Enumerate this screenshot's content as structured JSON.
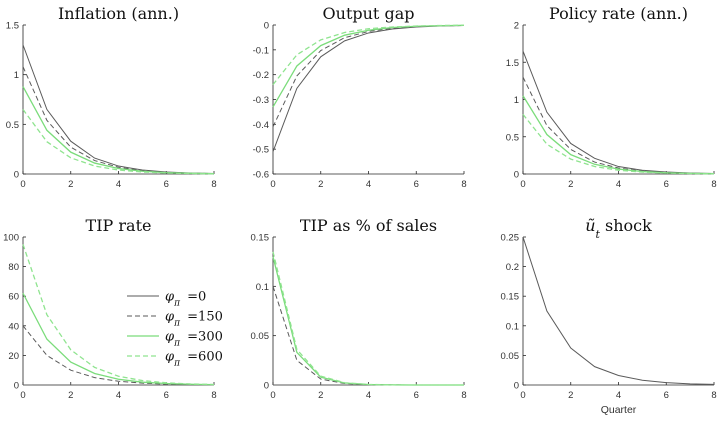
{
  "series_styles": [
    {
      "color": "#5a5a5a",
      "dash": "",
      "width": 1.0
    },
    {
      "color": "#5a5a5a",
      "dash": "5,3",
      "width": 1.0
    },
    {
      "color": "#7bdc7b",
      "dash": "",
      "width": 1.3
    },
    {
      "color": "#8fe48f",
      "dash": "5,3",
      "width": 1.3
    }
  ],
  "legend": [
    {
      "symbol": "φ",
      "sub": "π",
      "value": "=0"
    },
    {
      "symbol": "φ",
      "sub": "π",
      "value": "=150"
    },
    {
      "symbol": "φ",
      "sub": "π",
      "value": "=300"
    },
    {
      "symbol": "φ",
      "sub": "π",
      "value": "=600"
    }
  ],
  "chart_data": [
    {
      "type": "line",
      "title": "Inflation (ann.)",
      "x": [
        0,
        1,
        2,
        3,
        4,
        5,
        6,
        7,
        8
      ],
      "ylim": [
        0,
        1.5
      ],
      "yticks": [
        0,
        0.5,
        1,
        1.5
      ],
      "ytick_labels": [
        "0",
        "0.5",
        "1",
        "1.5"
      ],
      "xticks": [
        0,
        2,
        4,
        6,
        8
      ],
      "xlabel": "",
      "series": [
        {
          "values": [
            1.3,
            0.65,
            0.33,
            0.16,
            0.08,
            0.04,
            0.02,
            0.01,
            0.005
          ]
        },
        {
          "values": [
            1.08,
            0.54,
            0.27,
            0.135,
            0.068,
            0.034,
            0.017,
            0.008,
            0.004
          ]
        },
        {
          "values": [
            0.88,
            0.44,
            0.22,
            0.11,
            0.055,
            0.028,
            0.014,
            0.007,
            0.003
          ]
        },
        {
          "values": [
            0.65,
            0.325,
            0.163,
            0.08,
            0.04,
            0.02,
            0.01,
            0.005,
            0.002
          ]
        }
      ]
    },
    {
      "type": "line",
      "title": "Output gap",
      "x": [
        0,
        1,
        2,
        3,
        4,
        5,
        6,
        7,
        8
      ],
      "ylim": [
        -0.6,
        0
      ],
      "yticks": [
        -0.6,
        -0.5,
        -0.4,
        -0.3,
        -0.2,
        -0.1,
        0
      ],
      "ytick_labels": [
        "-0.6",
        "-0.5",
        "-0.4",
        "-0.3",
        "-0.2",
        "-0.1",
        "0"
      ],
      "xticks": [
        0,
        2,
        4,
        6,
        8
      ],
      "xlabel": "",
      "series": [
        {
          "values": [
            -0.51,
            -0.255,
            -0.128,
            -0.064,
            -0.032,
            -0.016,
            -0.008,
            -0.004,
            -0.002
          ]
        },
        {
          "values": [
            -0.41,
            -0.205,
            -0.103,
            -0.051,
            -0.026,
            -0.013,
            -0.006,
            -0.003,
            -0.002
          ]
        },
        {
          "values": [
            -0.33,
            -0.165,
            -0.083,
            -0.041,
            -0.021,
            -0.01,
            -0.005,
            -0.003,
            -0.001
          ]
        },
        {
          "values": [
            -0.24,
            -0.12,
            -0.06,
            -0.03,
            -0.015,
            -0.008,
            -0.004,
            -0.002,
            -0.001
          ]
        }
      ]
    },
    {
      "type": "line",
      "title": "Policy rate (ann.)",
      "x": [
        0,
        1,
        2,
        3,
        4,
        5,
        6,
        7,
        8
      ],
      "ylim": [
        0,
        2
      ],
      "yticks": [
        0,
        0.5,
        1,
        1.5,
        2
      ],
      "ytick_labels": [
        "0",
        "0.5",
        "1",
        "1.5",
        "2"
      ],
      "xticks": [
        0,
        2,
        4,
        6,
        8
      ],
      "xlabel": "",
      "series": [
        {
          "values": [
            1.65,
            0.83,
            0.41,
            0.21,
            0.1,
            0.05,
            0.026,
            0.013,
            0.006
          ]
        },
        {
          "values": [
            1.3,
            0.65,
            0.33,
            0.16,
            0.08,
            0.04,
            0.02,
            0.01,
            0.005
          ]
        },
        {
          "values": [
            1.05,
            0.53,
            0.26,
            0.13,
            0.066,
            0.033,
            0.016,
            0.008,
            0.004
          ]
        },
        {
          "values": [
            0.8,
            0.4,
            0.2,
            0.1,
            0.05,
            0.025,
            0.013,
            0.006,
            0.003
          ]
        }
      ]
    },
    {
      "type": "line",
      "title": "TIP rate",
      "x": [
        0,
        1,
        2,
        3,
        4,
        5,
        6,
        7,
        8
      ],
      "ylim": [
        0,
        100
      ],
      "yticks": [
        0,
        20,
        40,
        60,
        80,
        100
      ],
      "ytick_labels": [
        "0",
        "20",
        "40",
        "60",
        "80",
        "100"
      ],
      "xticks": [
        0,
        2,
        4,
        6,
        8
      ],
      "xlabel": "",
      "series": [
        {
          "values": [
            0,
            0,
            0,
            0,
            0,
            0,
            0,
            0,
            0
          ]
        },
        {
          "values": [
            40,
            20,
            10,
            5,
            2.5,
            1.25,
            0.6,
            0.3,
            0.15
          ]
        },
        {
          "values": [
            62,
            31,
            15.5,
            7.8,
            3.9,
            1.9,
            1.0,
            0.5,
            0.25
          ]
        },
        {
          "values": [
            95,
            47.5,
            23.8,
            11.9,
            5.9,
            3.0,
            1.5,
            0.7,
            0.35
          ]
        }
      ]
    },
    {
      "type": "line",
      "title": "TIP as % of sales",
      "x": [
        0,
        1,
        2,
        3,
        4,
        5,
        6,
        7,
        8
      ],
      "ylim": [
        0,
        0.15
      ],
      "yticks": [
        0,
        0.05,
        0.1,
        0.15
      ],
      "ytick_labels": [
        "0",
        "0.05",
        "0.1",
        "0.15"
      ],
      "xticks": [
        0,
        2,
        4,
        6,
        8
      ],
      "xlabel": "",
      "series": [
        {
          "values": [
            0,
            0,
            0,
            0,
            0,
            0,
            0,
            0,
            0
          ]
        },
        {
          "values": [
            0.1,
            0.025,
            0.006,
            0.0015,
            0.0004,
            0.0001,
            0,
            0,
            0
          ]
        },
        {
          "values": [
            0.13,
            0.033,
            0.008,
            0.002,
            0.0005,
            0.0001,
            0,
            0,
            0
          ]
        },
        {
          "values": [
            0.135,
            0.036,
            0.009,
            0.0023,
            0.0006,
            0.0001,
            0,
            0,
            0
          ]
        }
      ]
    },
    {
      "type": "line",
      "title": "ũ shock",
      "title_sub": "t",
      "x": [
        0,
        1,
        2,
        3,
        4,
        5,
        6,
        7,
        8
      ],
      "ylim": [
        0,
        0.25
      ],
      "yticks": [
        0,
        0.05,
        0.1,
        0.15,
        0.2,
        0.25
      ],
      "ytick_labels": [
        "0",
        "0.05",
        "0.1",
        "0.15",
        "0.2",
        "0.25"
      ],
      "xticks": [
        0,
        2,
        4,
        6,
        8
      ],
      "xlabel": "Quarter",
      "series": [
        {
          "values": [
            0.25,
            0.125,
            0.0625,
            0.031,
            0.016,
            0.008,
            0.004,
            0.002,
            0.001
          ]
        }
      ]
    }
  ]
}
